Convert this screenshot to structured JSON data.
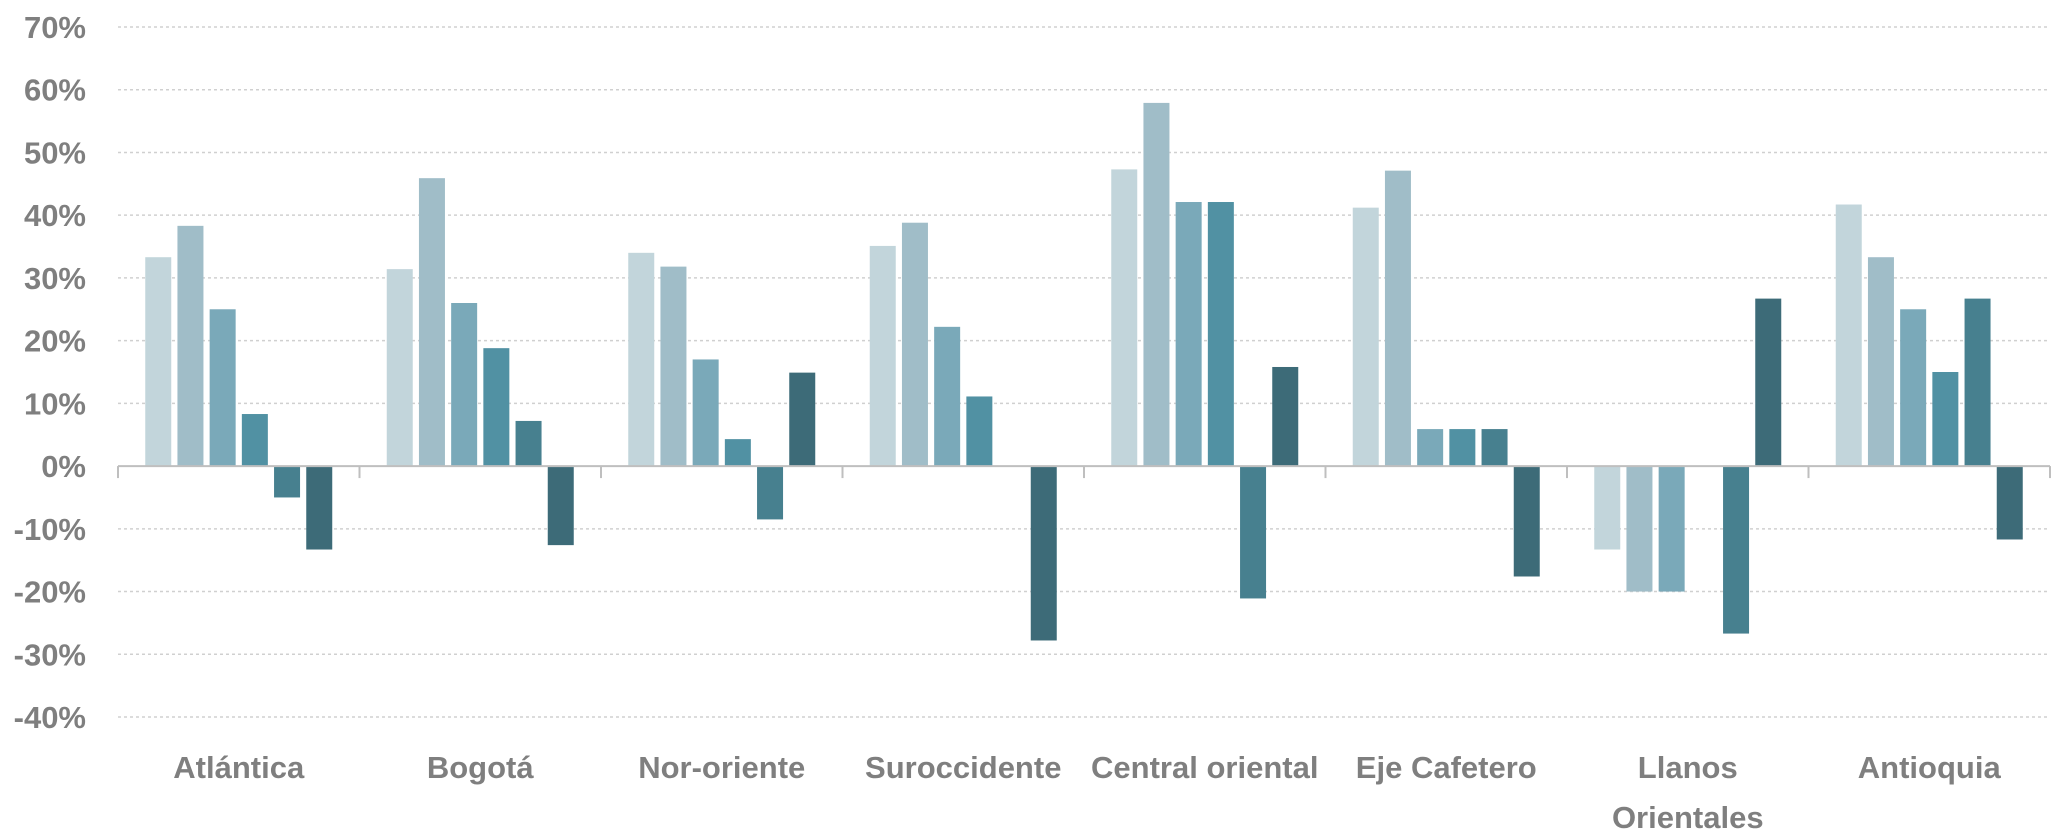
{
  "chart_data": {
    "type": "bar",
    "categories": [
      "Atlántica",
      "Bogotá",
      "Nor-oriente",
      "Suroccidente",
      "Central oriental",
      "Eje Cafetero",
      "Llanos Orientales",
      "Antioquia"
    ],
    "category_lines": [
      [
        "Atlántica"
      ],
      [
        "Bogotá"
      ],
      [
        "Nor-oriente"
      ],
      [
        "Suroccidente"
      ],
      [
        "Central oriental"
      ],
      [
        "Eje Cafetero"
      ],
      [
        "Llanos",
        "Orientales"
      ],
      [
        "Antioquia"
      ]
    ],
    "series": [
      {
        "color": "#c2d5db",
        "values": [
          33.3,
          31.4,
          34.0,
          35.1,
          47.3,
          41.2,
          -13.3,
          41.7
        ]
      },
      {
        "color": "#a0bdc8",
        "values": [
          38.3,
          45.9,
          31.8,
          38.8,
          57.9,
          47.1,
          -20.0,
          33.3
        ]
      },
      {
        "color": "#7aa9b9",
        "values": [
          25.0,
          26.0,
          17.0,
          22.2,
          42.1,
          5.9,
          -20.0,
          25.0
        ]
      },
      {
        "color": "#5191a3",
        "values": [
          8.3,
          18.8,
          4.3,
          11.1,
          42.1,
          5.9,
          null,
          15.0
        ]
      },
      {
        "color": "#47808f",
        "values": [
          -5.0,
          7.2,
          -8.5,
          null,
          -21.1,
          5.9,
          -26.7,
          26.7
        ]
      },
      {
        "color": "#3d6b78",
        "values": [
          -13.3,
          -12.6,
          14.9,
          -27.8,
          15.8,
          -17.6,
          26.7,
          -11.7
        ]
      }
    ],
    "ylim": [
      -40,
      70
    ],
    "yticks": [
      "70%",
      "60%",
      "50%",
      "40%",
      "30%",
      "20%",
      "10%",
      "0%",
      "-10%",
      "-20%",
      "-30%",
      "-40%"
    ],
    "ytick_values": [
      70,
      60,
      50,
      40,
      30,
      20,
      10,
      0,
      -10,
      -20,
      -30,
      -40
    ],
    "title": "",
    "xlabel": "",
    "ylabel": "",
    "grid": true,
    "legend": "none"
  }
}
